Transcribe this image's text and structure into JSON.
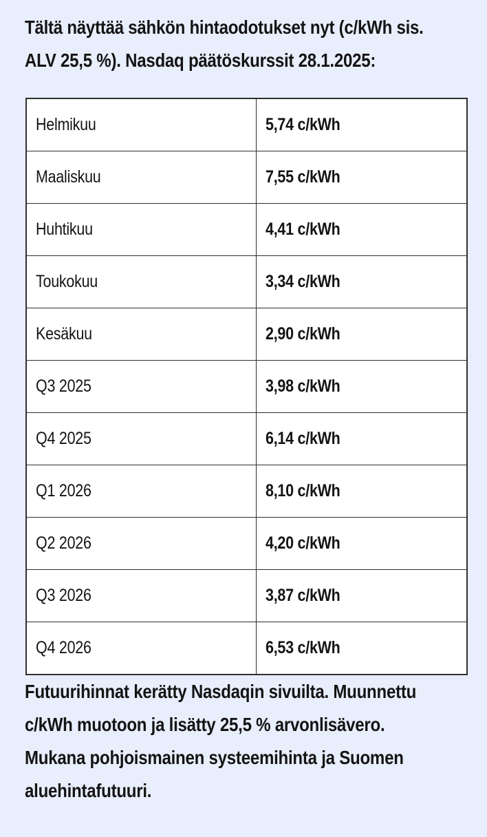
{
  "colors": {
    "page_background": "#e9eefc",
    "cell_background": "#ffffff",
    "border": "#2e2e2e",
    "text": "#141414"
  },
  "intro": {
    "lines": [
      "Tältä näyttää sähkön hintaodotukset nyt (c/kWh sis.",
      "ALV 25,5 %). Nasdaq päätöskurssit 28.1.2025:"
    ]
  },
  "table": {
    "rows": [
      {
        "period": "Helmikuu",
        "price": "5,74 c/kWh"
      },
      {
        "period": "Maaliskuu",
        "price": "7,55 c/kWh"
      },
      {
        "period": "Huhtikuu",
        "price": "4,41 c/kWh"
      },
      {
        "period": "Toukokuu",
        "price": "3,34 c/kWh"
      },
      {
        "period": "Kesäkuu",
        "price": "2,90 c/kWh"
      },
      {
        "period": "Q3 2025",
        "price": "3,98 c/kWh"
      },
      {
        "period": "Q4 2025",
        "price": "6,14 c/kWh"
      },
      {
        "period": "Q1 2026",
        "price": "8,10 c/kWh"
      },
      {
        "period": "Q2 2026",
        "price": "4,20 c/kWh"
      },
      {
        "period": "Q3 2026",
        "price": "3,87 c/kWh"
      },
      {
        "period": "Q4 2026",
        "price": "6,53 c/kWh"
      }
    ]
  },
  "note": {
    "lines": [
      "Futuurihinnat kerätty Nasdaqin sivuilta. Muunnettu",
      "c/kWh muotoon ja lisätty 25,5 % arvonlisävero.",
      "Mukana pohjoismainen systeemihinta ja Suomen",
      "aluehintafutuuri."
    ]
  },
  "chart_data": {
    "type": "table",
    "title": "Sähkön hintaodotukset (c/kWh sis. ALV 25,5 %), Nasdaq päätöskurssit 28.1.2025",
    "categories": [
      "Helmikuu",
      "Maaliskuu",
      "Huhtikuu",
      "Toukokuu",
      "Kesäkuu",
      "Q3 2025",
      "Q4 2025",
      "Q1 2026",
      "Q2 2026",
      "Q3 2026",
      "Q4 2026"
    ],
    "values": [
      5.74,
      7.55,
      4.41,
      3.34,
      2.9,
      3.98,
      6.14,
      8.1,
      4.2,
      3.87,
      6.53
    ],
    "unit": "c/kWh"
  }
}
